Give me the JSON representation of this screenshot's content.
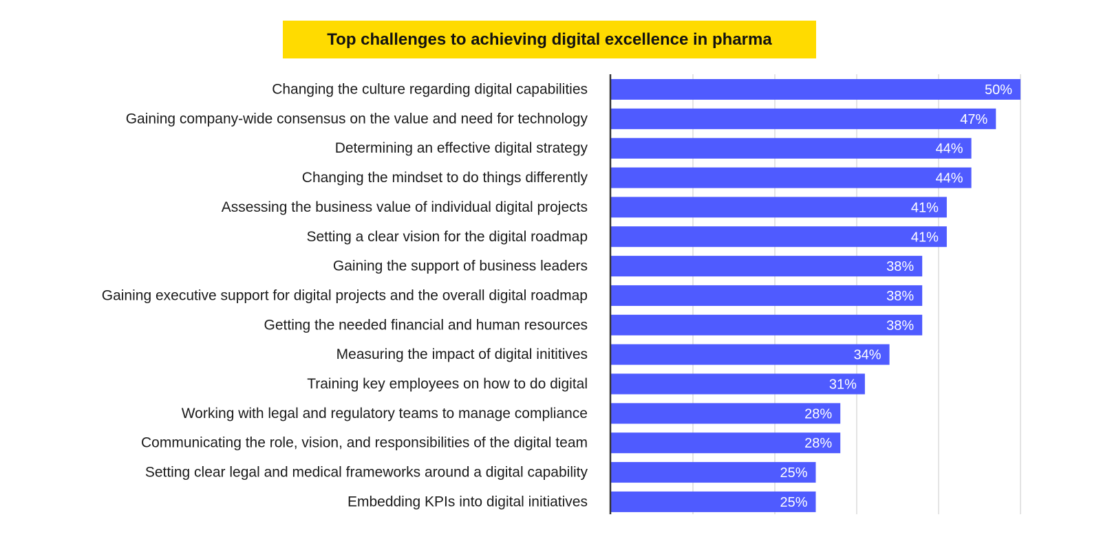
{
  "chart_data": {
    "type": "bar",
    "orientation": "horizontal",
    "title": "Top challenges to achieving digital excellence in pharma",
    "categories": [
      "Changing the culture regarding digital capabilities",
      "Gaining company-wide consensus on the value and need for technology",
      "Determining an effective digital strategy",
      "Changing the mindset to do things differently",
      "Assessing the business value of individual digital projects",
      "Setting a clear vision for the digital roadmap",
      "Gaining the support of business leaders",
      "Gaining executive support for digital projects and the overall digital roadmap",
      "Getting the needed financial and human resources",
      "Measuring the impact of digital inititives",
      "Training key employees on how to do digital",
      "Working with legal and regulatory teams to manage compliance",
      "Communicating the role, vision, and responsibilities of the digital team",
      "Setting clear legal and medical frameworks around a digital capability",
      "Embedding KPIs into digital initiatives"
    ],
    "values": [
      50,
      47,
      44,
      44,
      41,
      41,
      38,
      38,
      38,
      34,
      31,
      28,
      28,
      25,
      25
    ],
    "value_labels": [
      "50%",
      "47%",
      "44%",
      "44%",
      "41%",
      "41%",
      "38%",
      "38%",
      "38%",
      "34%",
      "31%",
      "28%",
      "28%",
      "25%",
      "25%"
    ],
    "xlim": [
      0,
      50
    ],
    "grid_step": 10,
    "grid": true,
    "legend": "none",
    "bar_color": "#4f5bff",
    "title_background": "#ffdb00",
    "grid_color": "#c8c8c8",
    "axis_color": "#333333"
  }
}
